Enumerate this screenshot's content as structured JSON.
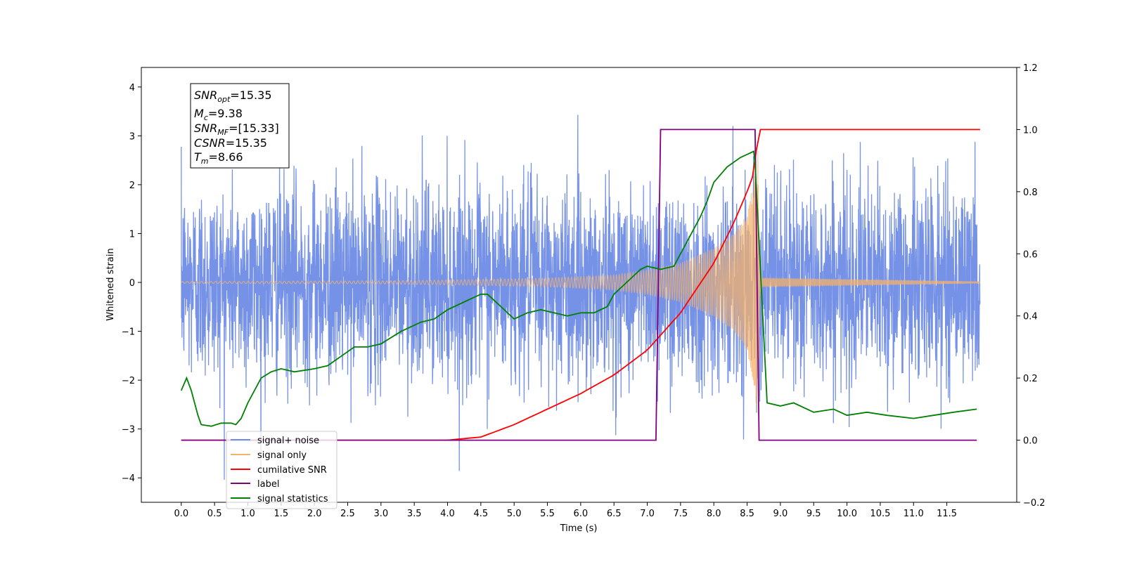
{
  "chart_data": {
    "type": "line",
    "xlabel": "Time (s)",
    "ylabel": "Whitened strain",
    "xlim": [
      -0.6,
      12.55
    ],
    "ylim_left": [
      -4.5,
      4.4
    ],
    "ylim_right": [
      -0.2,
      1.2
    ],
    "x_ticks": [
      "0.0",
      "0.5",
      "1.0",
      "1.5",
      "2.0",
      "2.5",
      "3.0",
      "3.5",
      "4.0",
      "4.5",
      "5.0",
      "5.5",
      "6.0",
      "6.5",
      "7.0",
      "7.5",
      "8.0",
      "8.5",
      "9.0",
      "9.5",
      "10.0",
      "10.5",
      "11.0",
      "11.5"
    ],
    "y_ticks_left": [
      "4",
      "3",
      "2",
      "1",
      "0",
      "−1",
      "−2",
      "−3",
      "−4"
    ],
    "y_ticks_right": [
      "1.2",
      "1.0",
      "0.8",
      "0.6",
      "0.4",
      "0.2",
      "0.0",
      "−0.2"
    ],
    "info_box": {
      "snr_opt": "=15.35",
      "mc": "=9.38",
      "snr_mf": "=[15.33]",
      "csnr": "=15.35",
      "tm": "=8.66"
    },
    "legend": [
      {
        "label": "signal+ noise",
        "color": "#6f8ce6"
      },
      {
        "label": "signal only",
        "color": "#f5b26b"
      },
      {
        "label": "cumilative SNR",
        "color": "#ff0000"
      },
      {
        "label": "label",
        "color": "#800080"
      },
      {
        "label": "signal statistics",
        "color": "#008000"
      }
    ],
    "series": [
      {
        "name": "signal+ noise",
        "axis": "left",
        "color": "#6f8ce6",
        "description_range": [
          0,
          12.0
        ],
        "amplitude_sigma": 1.0,
        "max_abs": 4.05
      },
      {
        "name": "signal only",
        "axis": "left",
        "color": "#f5b26b",
        "envelope": {
          "x": [
            0,
            3.0,
            4.5,
            5.5,
            6.5,
            7.0,
            7.5,
            8.0,
            8.3,
            8.5,
            8.6,
            8.66,
            8.7,
            12.0
          ],
          "y": [
            0.02,
            0.03,
            0.06,
            0.09,
            0.15,
            0.25,
            0.4,
            0.7,
            1.0,
            1.4,
            2.1,
            2.8,
            0.1,
            0.02
          ]
        }
      },
      {
        "name": "cumilative SNR",
        "axis": "right",
        "color": "#ff0000",
        "x": [
          0,
          4.0,
          4.5,
          5.0,
          5.5,
          6.0,
          6.5,
          7.0,
          7.5,
          8.0,
          8.3,
          8.5,
          8.62,
          8.66,
          12.0
        ],
        "y": [
          0,
          0,
          0.01,
          0.05,
          0.1,
          0.15,
          0.21,
          0.29,
          0.41,
          0.57,
          0.7,
          0.8,
          0.87,
          1.0,
          1.0
        ]
      },
      {
        "name": "label",
        "axis": "right",
        "color": "#800080",
        "x": [
          0,
          7.13,
          7.2,
          8.62,
          8.68,
          11.95
        ],
        "y": [
          0,
          0,
          1.0,
          1.0,
          0,
          0
        ]
      },
      {
        "name": "signal statistics",
        "axis": "right",
        "color": "#008000",
        "x": [
          0,
          0.08,
          0.15,
          0.25,
          0.3,
          0.45,
          0.6,
          0.75,
          0.82,
          0.9,
          1.0,
          1.2,
          1.35,
          1.5,
          1.7,
          2.0,
          2.2,
          2.4,
          2.6,
          2.8,
          3.0,
          3.3,
          3.6,
          3.8,
          4.0,
          4.2,
          4.4,
          4.5,
          4.6,
          4.8,
          5.0,
          5.2,
          5.4,
          5.6,
          5.8,
          6.0,
          6.2,
          6.4,
          6.5,
          6.7,
          6.9,
          7.0,
          7.2,
          7.4,
          7.6,
          7.8,
          7.9,
          8.0,
          8.2,
          8.4,
          8.5,
          8.6,
          8.62,
          8.7,
          8.8,
          9.0,
          9.2,
          9.5,
          9.8,
          10.0,
          10.3,
          10.6,
          11.0,
          11.3,
          11.6,
          11.95
        ],
        "y": [
          0.16,
          0.2,
          0.16,
          0.08,
          0.05,
          0.045,
          0.055,
          0.055,
          0.05,
          0.07,
          0.12,
          0.2,
          0.22,
          0.23,
          0.22,
          0.23,
          0.24,
          0.27,
          0.3,
          0.3,
          0.31,
          0.35,
          0.38,
          0.39,
          0.42,
          0.44,
          0.46,
          0.47,
          0.47,
          0.43,
          0.39,
          0.41,
          0.42,
          0.41,
          0.4,
          0.41,
          0.41,
          0.43,
          0.47,
          0.51,
          0.55,
          0.56,
          0.55,
          0.56,
          0.64,
          0.72,
          0.77,
          0.83,
          0.88,
          0.91,
          0.92,
          0.93,
          0.89,
          0.55,
          0.12,
          0.11,
          0.12,
          0.09,
          0.1,
          0.08,
          0.09,
          0.08,
          0.07,
          0.08,
          0.09,
          0.1
        ]
      }
    ]
  }
}
